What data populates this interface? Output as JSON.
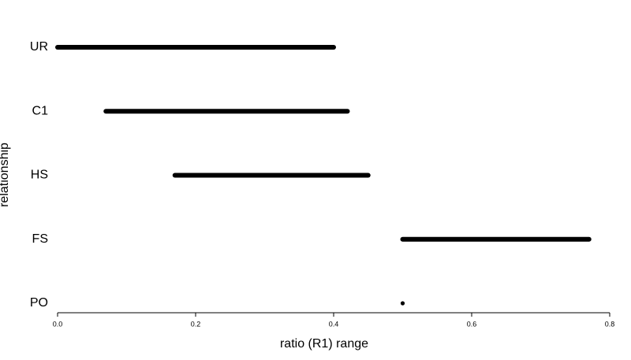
{
  "chart_data": {
    "type": "range",
    "xlabel": "ratio (R1) range",
    "ylabel": "relationship",
    "categories": [
      "UR",
      "C1",
      "HS",
      "FS",
      "PO"
    ],
    "low": [
      0,
      0.07,
      0.17,
      0.5,
      0.5
    ],
    "high": [
      0.4,
      0.42,
      0.45,
      0.77,
      0.5
    ],
    "color": "#000000",
    "xlim": [
      0,
      0.8
    ],
    "xticks": [
      {
        "value": 0,
        "label": "0.0"
      },
      0.2,
      0.4,
      0.6,
      0.8
    ]
  }
}
